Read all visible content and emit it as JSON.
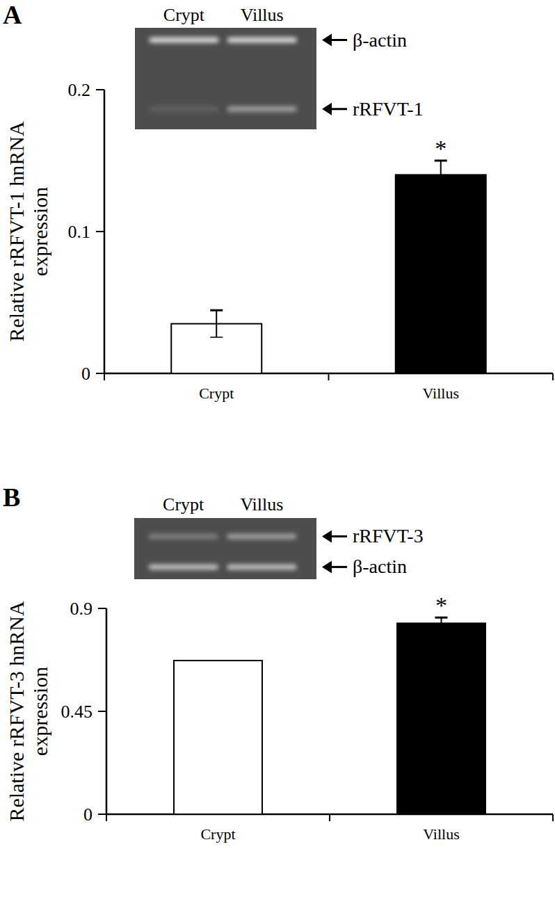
{
  "chart_data": [
    {
      "type": "bar",
      "panel": "A",
      "y_label": "Relative rRFVT-1 hnRNA expression",
      "categories": [
        "Crypt",
        "Villus"
      ],
      "values": [
        0.035,
        0.14
      ],
      "errors": [
        0.0095,
        0.01
      ],
      "colors": [
        "#ffffff",
        "#000000"
      ],
      "significance": [
        null,
        "*"
      ],
      "ylim": [
        0,
        0.2
      ],
      "yticks": [
        0,
        0.1,
        0.2
      ],
      "inset": {
        "lanes": [
          "Crypt",
          "Villus"
        ],
        "bands": [
          "β-actin",
          "rRFVT-1"
        ]
      }
    },
    {
      "type": "bar",
      "panel": "B",
      "y_label": "Relative rRFVT-3 hnRNA expression",
      "categories": [
        "Crypt",
        "Villus"
      ],
      "values": [
        0.672,
        0.835
      ],
      "errors": [
        null,
        0.025
      ],
      "colors": [
        "#ffffff",
        "#000000"
      ],
      "significance": [
        null,
        "*"
      ],
      "ylim": [
        0,
        0.9
      ],
      "yticks": [
        0,
        0.45,
        0.9
      ],
      "inset": {
        "lanes": [
          "Crypt",
          "Villus"
        ],
        "bands": [
          "rRFVT-3",
          "β-actin"
        ]
      }
    }
  ]
}
